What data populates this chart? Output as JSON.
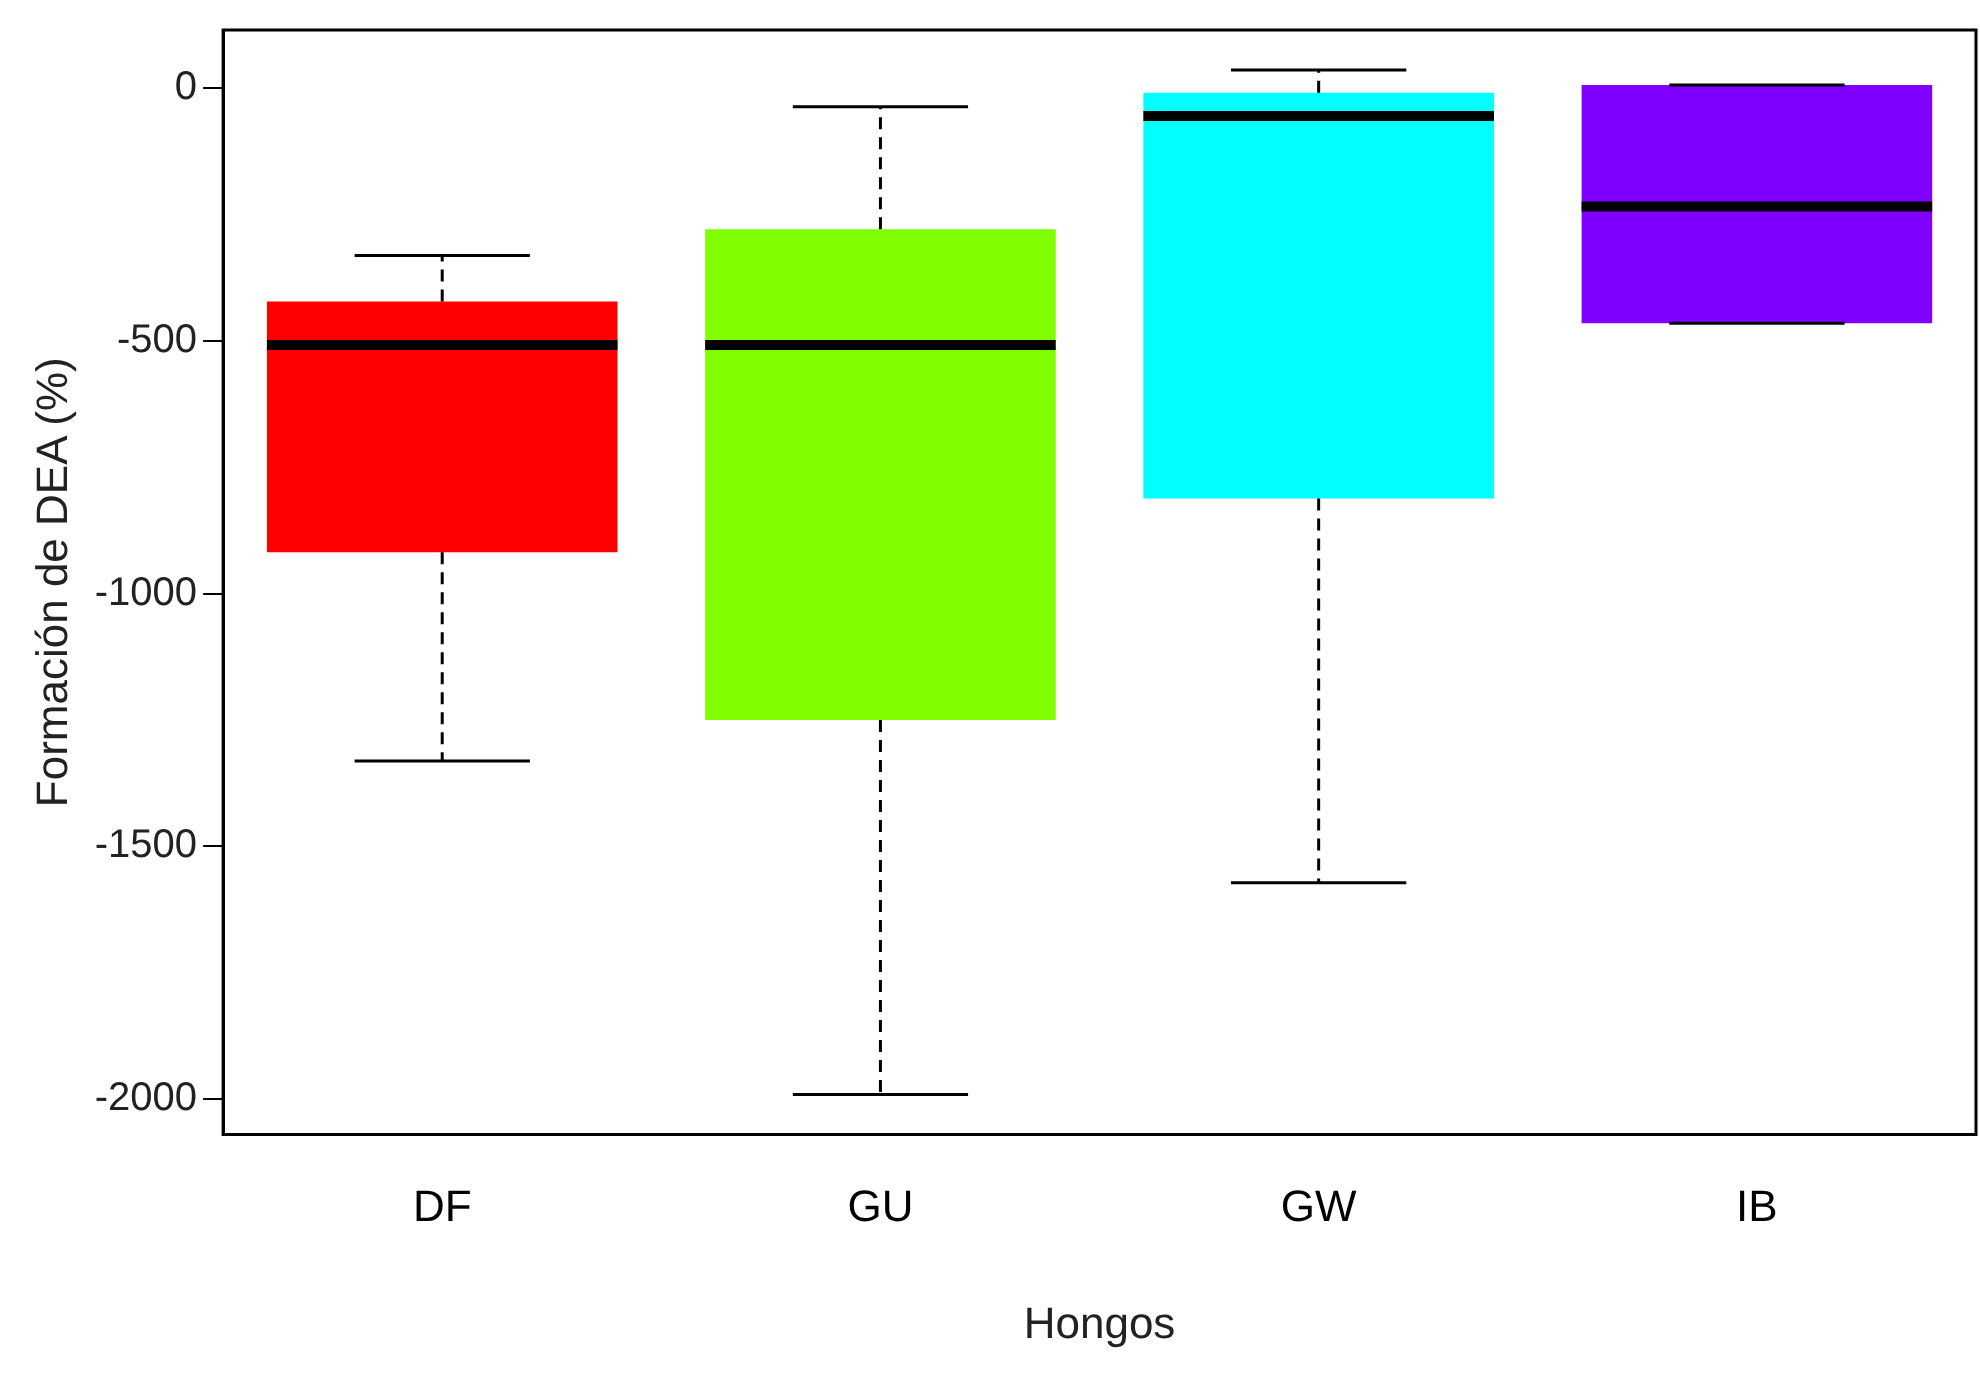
{
  "chart_data": {
    "type": "box",
    "xlabel": "Hongos",
    "ylabel": "Formación de DEA (%)",
    "categories": [
      "DF",
      "GU",
      "GW",
      "IB"
    ],
    "colors": [
      "#ff0000",
      "#80ff00",
      "#00ffff",
      "#8000ff"
    ],
    "boxes": [
      {
        "low": -1331,
        "q1": -918,
        "median": -508,
        "q3": -422,
        "high": -331
      },
      {
        "low": -1991,
        "q1": -1250,
        "median": -508,
        "q3": -279,
        "high": -37
      },
      {
        "low": -1572,
        "q1": -812,
        "median": -55,
        "q3": -9,
        "high": 36
      },
      {
        "low": -465,
        "q1": -465,
        "median": -234,
        "q3": 6,
        "high": 6
      }
    ],
    "ylim": [
      -2070,
      115
    ],
    "yticks": [
      -2000,
      -1500,
      -1000,
      -500,
      0
    ],
    "grid": false,
    "legend": false
  }
}
